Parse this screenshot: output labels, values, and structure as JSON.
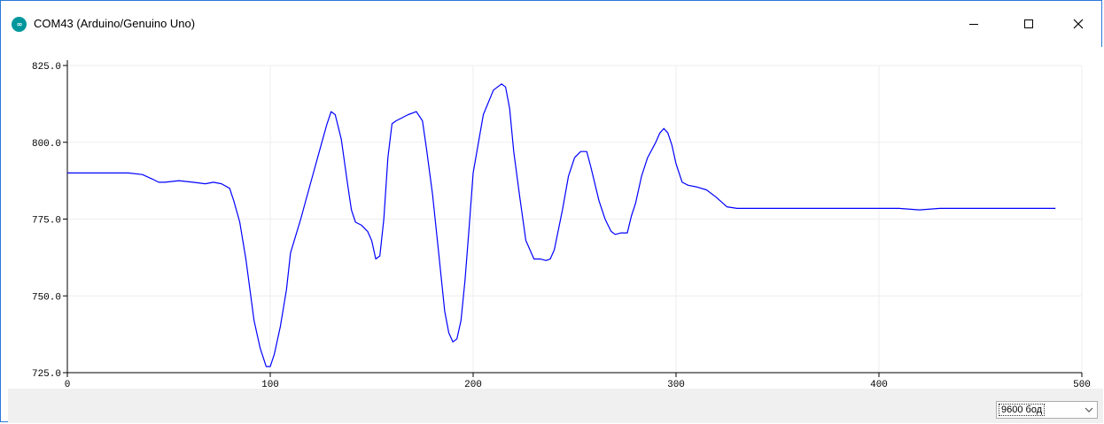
{
  "window": {
    "title": "COM43 (Arduino/Genuino Uno)",
    "icon": "arduino-logo-icon",
    "controls": [
      "minimize-icon",
      "maximize-icon",
      "close-icon"
    ],
    "border_color": "#2b79d8"
  },
  "footer": {
    "baud_rate": "9600 бод"
  },
  "chart_data": {
    "type": "line",
    "title": "",
    "xlabel": "",
    "ylabel": "",
    "xlim": [
      0,
      500
    ],
    "ylim": [
      725,
      825
    ],
    "x_ticks": [
      0,
      100,
      200,
      300,
      400,
      500
    ],
    "y_ticks": [
      725,
      750,
      775,
      800,
      825
    ],
    "x_tick_labels": [
      "0",
      "100",
      "200",
      "300",
      "400",
      "500"
    ],
    "y_tick_labels": [
      "725.0",
      "750.0",
      "775.0",
      "800.0",
      "825.0"
    ],
    "grid": true,
    "legend": "none",
    "line_color": "#0000ff",
    "series": [
      {
        "x": [
          0,
          10,
          20,
          30,
          37,
          42,
          45,
          48,
          55,
          62,
          68,
          72,
          76,
          80,
          82,
          85,
          88,
          90,
          92,
          95,
          98,
          100,
          102,
          105,
          108,
          110,
          115,
          120,
          125,
          128,
          130,
          132,
          135,
          138,
          140,
          142,
          145,
          148,
          150,
          152,
          154,
          156,
          158,
          160,
          162,
          165,
          168,
          172,
          175,
          177,
          180,
          183,
          186,
          188,
          190,
          192,
          194,
          196,
          198,
          200,
          205,
          210,
          214,
          216,
          218,
          220,
          223,
          226,
          230,
          233,
          236,
          238,
          240,
          244,
          247,
          250,
          253,
          256,
          258,
          262,
          265,
          268,
          270,
          273,
          276,
          278,
          280,
          283,
          286,
          290,
          292,
          294,
          296,
          298,
          300,
          303,
          306,
          310,
          315,
          320,
          325,
          330,
          340,
          350,
          360,
          370,
          380,
          390,
          400,
          410,
          420,
          430,
          440,
          450,
          460,
          470,
          480,
          487
        ],
        "y": [
          790,
          790,
          790,
          790,
          789.5,
          788,
          787,
          787,
          787.5,
          787,
          786.5,
          787,
          786.5,
          785,
          781,
          774,
          762,
          752,
          742,
          733,
          727,
          727,
          731,
          740,
          752,
          764,
          775,
          787,
          799,
          806,
          810,
          809,
          801,
          787,
          778,
          774,
          773,
          771,
          768,
          762,
          763,
          775,
          795,
          806,
          807,
          808,
          809,
          810,
          807,
          798,
          783,
          764,
          745,
          738,
          735,
          736,
          742,
          755,
          772,
          790,
          809,
          817,
          819,
          818,
          811,
          797,
          782,
          768,
          762,
          762,
          761.5,
          762,
          765,
          778,
          789,
          795,
          797,
          797,
          792,
          781,
          775,
          771,
          770,
          770.5,
          770.5,
          776,
          780,
          789,
          795,
          800,
          803,
          804.5,
          803,
          799,
          793,
          787,
          786,
          785.5,
          784.5,
          782,
          779,
          778.5,
          778.5,
          778.5,
          778.5,
          778.5,
          778.5,
          778.5,
          778.5,
          778.5,
          778,
          778.5,
          778.5,
          778.5,
          778.5,
          778.5,
          778.5,
          778.5
        ]
      }
    ]
  }
}
